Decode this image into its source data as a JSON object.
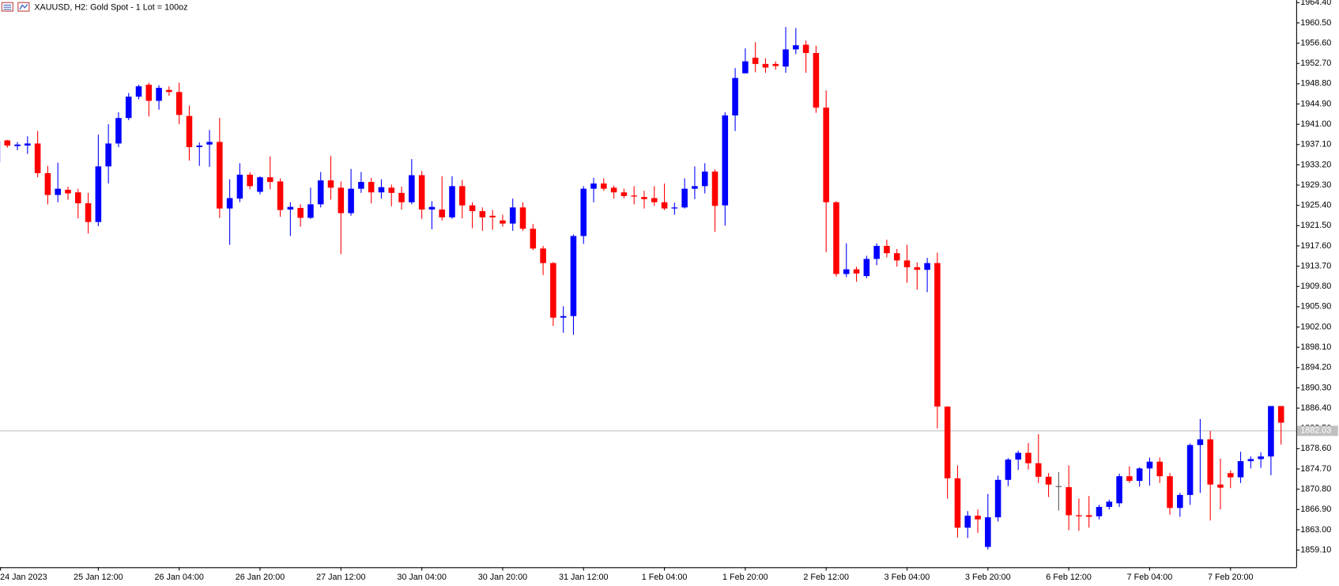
{
  "chart_data": {
    "type": "candlestick",
    "title": "XAUUSD, H2:  Gold  Spot - 1 Lot = 100oz",
    "categories": [
      "24 Jan 2023",
      null,
      null,
      null,
      null,
      null,
      null,
      null,
      null,
      null,
      "25 Jan 12:00",
      null,
      null,
      null,
      null,
      null,
      null,
      null,
      "26 Jan 04:00",
      null,
      null,
      null,
      null,
      null,
      null,
      null,
      "26 Jan 20:00",
      null,
      null,
      null,
      null,
      null,
      null,
      null,
      "27 Jan 12:00",
      null,
      null,
      null,
      null,
      null,
      null,
      null,
      "30 Jan 04:00",
      null,
      null,
      null,
      null,
      null,
      null,
      null,
      "30 Jan 20:00",
      null,
      null,
      null,
      null,
      null,
      null,
      null,
      "31 Jan 12:00",
      null,
      null,
      null,
      null,
      null,
      null,
      null,
      "1 Feb 04:00",
      null,
      null,
      null,
      null,
      null,
      null,
      null,
      "1 Feb 20:00",
      null,
      null,
      null,
      null,
      null,
      null,
      null,
      "2 Feb 12:00",
      null,
      null,
      null,
      null,
      null,
      null,
      null,
      "3 Feb 04:00",
      null,
      null,
      null,
      null,
      null,
      null,
      null,
      "3 Feb 20:00",
      null,
      null,
      null,
      null,
      null,
      null,
      null,
      "6 Feb 12:00",
      null,
      null,
      null,
      null,
      null,
      null,
      null,
      "7 Feb 04:00",
      null,
      null,
      null,
      null,
      null,
      null,
      null,
      "7 Feb 20:00",
      null,
      null,
      null,
      null,
      null
    ],
    "open": [
      1933.7,
      1937.9,
      1936.8,
      1936.9,
      1937.3,
      1931.6,
      1927.4,
      1928.4,
      1927.9,
      1925.8,
      1922.2,
      1932.9,
      1937.3,
      1942.2,
      1946.3,
      1948.6,
      1945.5,
      1947.6,
      1947.2,
      1942.6,
      1936.6,
      1937.1,
      1937.6,
      1924.8,
      1926.7,
      1931.3,
      1928,
      1930.8,
      1930,
      1924.6,
      1924.9,
      1923,
      1925.6,
      1930.2,
      1928.8,
      1923.9,
      1928.6,
      1929.9,
      1927.9,
      1928.8,
      1927.8,
      1926,
      1931.2,
      1924.6,
      1924.6,
      1923.1,
      1929.1,
      1925.4,
      1924.3,
      1923.4,
      1922.5,
      1921.9,
      1925,
      1920.9,
      1917.1,
      1914.3,
      1903.8,
      1904.1,
      1919.5,
      1928.6,
      1929.6,
      1928.8,
      1927.9,
      1927.3,
      1927,
      1926.8,
      1926,
      1924.8,
      1925,
      1928.6,
      1929.1,
      1931.9,
      1925.4,
      1942.7,
      1950.8,
      1953.8,
      1952.6,
      1952.6,
      1952.1,
      1955.4,
      1956.3,
      1954.7,
      1944.2,
      1926,
      1912.2,
      1913.1,
      1911.8,
      1915.1,
      1917.6,
      1916.2,
      1914.8,
      1913.5,
      1913,
      1914.3,
      1886.7,
      1872.9,
      1863.4,
      1865.7,
      1859.7,
      1865.4,
      1872.6,
      1876.5,
      1877.8,
      1875.8,
      1873.2,
      1871.4,
      1871.2,
      1865.8,
      1865.8,
      1865.6,
      1867.4,
      1868.1,
      1873.3,
      1872.4,
      1874.8,
      1876.1,
      1873.3,
      1867.2,
      1869.7,
      1879.3,
      1880.4,
      1871.7,
      1873.9,
      1873.1,
      1876.2,
      1876.6,
      1877.1,
      1886.8
    ],
    "high": [
      1938.2,
      1938,
      1937.6,
      1938.7,
      1939.7,
      1933,
      1933.6,
      1929,
      1928.6,
      1927.8,
      1939,
      1941,
      1943.3,
      1947,
      1948.6,
      1949,
      1948.5,
      1948.3,
      1949,
      1944.6,
      1937.5,
      1939.9,
      1942.2,
      1930.4,
      1933.5,
      1931.8,
      1931,
      1934.8,
      1930.6,
      1926,
      1925.6,
      1928.8,
      1931.8,
      1934.9,
      1930,
      1932.4,
      1931.8,
      1930.7,
      1930.4,
      1929.4,
      1929,
      1934.3,
      1932,
      1926.2,
      1931,
      1931,
      1930.3,
      1926,
      1925,
      1924.5,
      1923.6,
      1926.7,
      1926,
      1921.8,
      1917.6,
      1914.5,
      1906,
      1919.8,
      1929.1,
      1930.7,
      1930.6,
      1929.2,
      1928.6,
      1929.1,
      1928.2,
      1929.1,
      1929.6,
      1925.9,
      1930.6,
      1932.9,
      1933.5,
      1932.3,
      1943.3,
      1951.8,
      1955.6,
      1956.8,
      1953.7,
      1953.1,
      1959.7,
      1959.5,
      1957.1,
      1956.1,
      1947.5,
      1926.2,
      1918.1,
      1913.6,
      1915.7,
      1918.1,
      1918.8,
      1917,
      1917.8,
      1914.4,
      1915.3,
      1916.3,
      1886.7,
      1875.4,
      1866.6,
      1866.9,
      1869.9,
      1873.4,
      1876.8,
      1878.2,
      1879.7,
      1881.4,
      1873.9,
      1874.1,
      1875.4,
      1869,
      1869.5,
      1867.8,
      1868.8,
      1873.8,
      1875.2,
      1875,
      1876.9,
      1876.9,
      1873.9,
      1870.1,
      1879.6,
      1884.3,
      1882,
      1876.7,
      1874.4,
      1878,
      1877.1,
      1877.9,
      1886.8,
      1886.8
    ],
    "low": [
      1933,
      1936.5,
      1936,
      1935.3,
      1930.8,
      1925.6,
      1926,
      1926.5,
      1922.9,
      1920,
      1921.4,
      1929.6,
      1936.6,
      1941.8,
      1945.8,
      1942.5,
      1943.8,
      1946.5,
      1941,
      1934,
      1933,
      1932.8,
      1923,
      1917.8,
      1926,
      1928.5,
      1927.5,
      1928.5,
      1923.2,
      1919.5,
      1921.3,
      1922.8,
      1925,
      1926.5,
      1916,
      1923.4,
      1927.8,
      1925.8,
      1926.7,
      1925.2,
      1924.6,
      1925.6,
      1922.8,
      1920.8,
      1922.5,
      1922.8,
      1922.9,
      1921,
      1920.5,
      1920.7,
      1921.3,
      1920.5,
      1920.5,
      1916.8,
      1912,
      1902.2,
      1900.9,
      1900.5,
      1918,
      1926,
      1928.2,
      1926.7,
      1926.8,
      1925.6,
      1924.8,
      1925.3,
      1924.5,
      1923.6,
      1924.8,
      1926.6,
      1927.7,
      1920.3,
      1921.5,
      1939.7,
      1950.8,
      1951,
      1950.9,
      1951.5,
      1950.9,
      1954.5,
      1950.9,
      1943.2,
      1916.4,
      1911.7,
      1911.6,
      1910.7,
      1911.4,
      1913.9,
      1915.4,
      1913.6,
      1910.5,
      1909.2,
      1908.7,
      1882.5,
      1869,
      1861.5,
      1861.4,
      1862.4,
      1859.2,
      1864.6,
      1871.4,
      1874.5,
      1874.6,
      1872,
      1869.3,
      1866.7,
      1862.9,
      1862.8,
      1863.4,
      1865,
      1866.9,
      1867.4,
      1872,
      1871.3,
      1871.5,
      1872,
      1865.9,
      1865.5,
      1867.8,
      1870.1,
      1864.8,
      1866.9,
      1871,
      1872,
      1874.8,
      1874.9,
      1873.5,
      1879.4
    ],
    "close": [
      1937.8,
      1936.9,
      1937.1,
      1937.3,
      1931.6,
      1927.4,
      1928.6,
      1927.7,
      1925.8,
      1922.2,
      1932.9,
      1937.3,
      1942.2,
      1946.3,
      1948.3,
      1945.5,
      1948,
      1947.2,
      1942.8,
      1936.6,
      1936.9,
      1937.6,
      1924.8,
      1926.8,
      1931.3,
      1929.1,
      1930.8,
      1929.9,
      1924.5,
      1925.1,
      1923,
      1925.6,
      1930.2,
      1928.8,
      1923.9,
      1928.6,
      1929.9,
      1927.9,
      1928.9,
      1927.8,
      1926,
      1931.2,
      1924.6,
      1925.1,
      1923.1,
      1929.1,
      1925.4,
      1924.3,
      1923.1,
      1923.1,
      1921.9,
      1925,
      1920.9,
      1917.1,
      1914.3,
      1903.8,
      1904.1,
      1919.5,
      1928.6,
      1929.6,
      1928.6,
      1927.9,
      1927.2,
      1927.1,
      1926.6,
      1926,
      1924.8,
      1925,
      1928.6,
      1929.1,
      1931.9,
      1925.3,
      1942.7,
      1949.9,
      1953.1,
      1952.6,
      1951.9,
      1952.2,
      1955.4,
      1956.2,
      1954.7,
      1944.2,
      1926,
      1912.2,
      1913.1,
      1912.3,
      1915.1,
      1917.6,
      1916.2,
      1914.8,
      1913.5,
      1913,
      1914.3,
      1886.7,
      1872.9,
      1863.4,
      1865.7,
      1865,
      1865.4,
      1872.6,
      1876.5,
      1877.8,
      1875.8,
      1873.2,
      1871.7,
      1871.4,
      1865.8,
      1865.6,
      1865.5,
      1867.4,
      1868.4,
      1873.3,
      1872.4,
      1874.8,
      1876.1,
      1873.3,
      1867.2,
      1869.7,
      1879.3,
      1880.4,
      1871.7,
      1871.1,
      1873.1,
      1876.2,
      1876.6,
      1877.1,
      1886.8,
      1883.6
    ],
    "up_color": "#0000ff",
    "down_color": "#ff0000",
    "doji_color": "#555555",
    "current_price": 1882.03,
    "price_line_color": "#c0c0c0",
    "ylim": [
      1855.8,
      1964.9
    ],
    "yticks": [
      {
        "value": 1964.4,
        "label": "1964.40"
      },
      {
        "value": 1960.5,
        "label": "1960.50"
      },
      {
        "value": 1956.6,
        "label": "1956.60"
      },
      {
        "value": 1952.7,
        "label": "1952.70"
      },
      {
        "value": 1948.8,
        "label": "1948.80"
      },
      {
        "value": 1944.9,
        "label": "1944.90"
      },
      {
        "value": 1941,
        "label": "1941.00"
      },
      {
        "value": 1937.1,
        "label": "1937.10"
      },
      {
        "value": 1933.2,
        "label": "1933.20"
      },
      {
        "value": 1929.3,
        "label": "1929.30"
      },
      {
        "value": 1925.4,
        "label": "1925.40"
      },
      {
        "value": 1921.5,
        "label": "1921.50"
      },
      {
        "value": 1917.6,
        "label": "1917.60"
      },
      {
        "value": 1913.7,
        "label": "1913.70"
      },
      {
        "value": 1909.8,
        "label": "1909.80"
      },
      {
        "value": 1905.9,
        "label": "1905.90"
      },
      {
        "value": 1902,
        "label": "1902.00"
      },
      {
        "value": 1898.1,
        "label": "1898.10"
      },
      {
        "value": 1894.2,
        "label": "1894.20"
      },
      {
        "value": 1890.3,
        "label": "1890.30"
      },
      {
        "value": 1886.4,
        "label": "1886.40"
      },
      {
        "value": 1882.5,
        "label": "1882.50"
      },
      {
        "value": 1878.6,
        "label": "1878.60"
      },
      {
        "value": 1874.7,
        "label": "1874.70"
      },
      {
        "value": 1870.8,
        "label": "1870.80"
      },
      {
        "value": 1866.9,
        "label": "1866.90"
      },
      {
        "value": 1863,
        "label": "1863.00"
      },
      {
        "value": 1859.1,
        "label": "1859.10"
      }
    ],
    "grid": false
  }
}
